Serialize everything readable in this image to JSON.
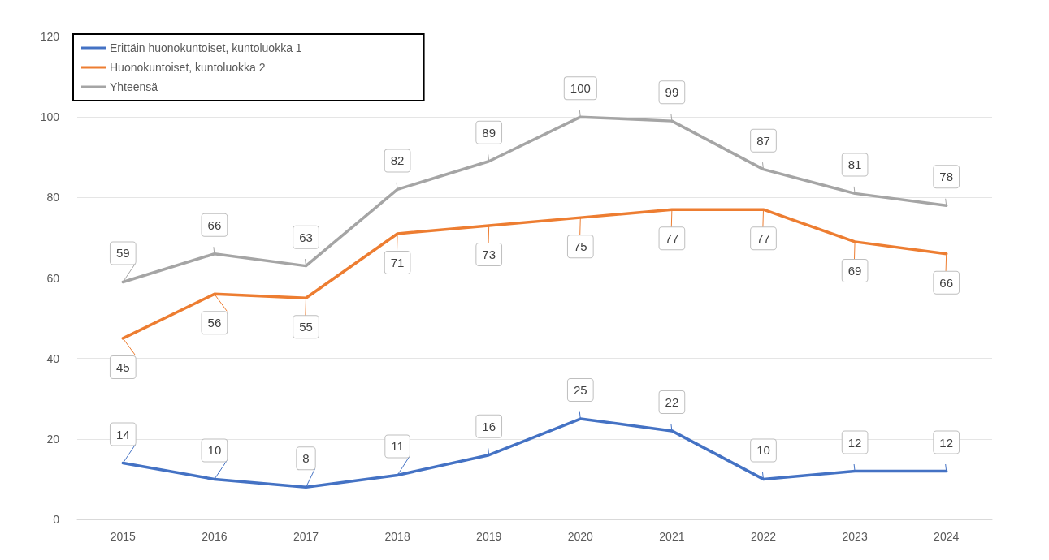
{
  "chart_data": {
    "type": "line",
    "categories": [
      "2015",
      "2016",
      "2017",
      "2018",
      "2019",
      "2020",
      "2021",
      "2022",
      "2023",
      "2024"
    ],
    "series": [
      {
        "name": "Erittäin huonokuntoiset, kuntoluokka 1",
        "color": "#4472c4",
        "values": [
          14,
          10,
          8,
          11,
          16,
          25,
          22,
          10,
          12,
          12
        ]
      },
      {
        "name": "Huonokuntoiset, kuntoluokka 2",
        "color": "#ed7d31",
        "values": [
          45,
          56,
          55,
          71,
          73,
          75,
          77,
          77,
          69,
          66
        ]
      },
      {
        "name": "Yhteensä",
        "color": "#a5a5a5",
        "values": [
          59,
          66,
          63,
          82,
          89,
          100,
          99,
          87,
          81,
          78
        ]
      }
    ],
    "ylim": [
      0,
      120
    ],
    "yticks": [
      0,
      20,
      40,
      60,
      80,
      100,
      120
    ],
    "grid": "y",
    "legend": "top left",
    "marker": "none",
    "line_style": "solid",
    "data_labels": true
  }
}
